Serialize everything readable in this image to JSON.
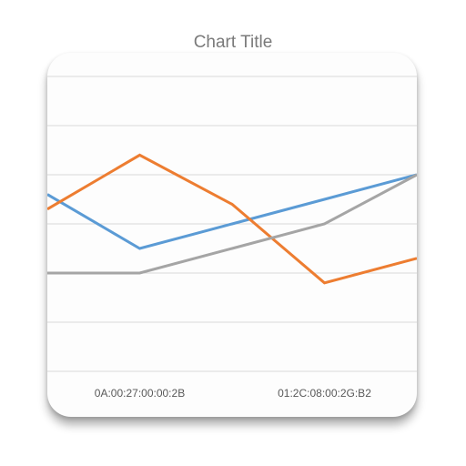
{
  "chart_data": {
    "type": "line",
    "title": "Chart Title",
    "categories": [
      "",
      "0A:00:27:00:00:2B",
      "",
      "01:2C:08:00:2G:B2",
      ""
    ],
    "series": [
      {
        "values": [
          3.6,
          2.5,
          3.0,
          3.5,
          4.0
        ],
        "color": "#5b9bd5"
      },
      {
        "values": [
          3.3,
          4.4,
          3.4,
          1.8,
          2.3
        ],
        "color": "#ed7d31"
      },
      {
        "values": [
          2.0,
          2.0,
          2.5,
          3.0,
          4.0
        ],
        "color": "#a5a5a5"
      }
    ],
    "ylim": [
      0,
      6
    ],
    "grid": true
  }
}
